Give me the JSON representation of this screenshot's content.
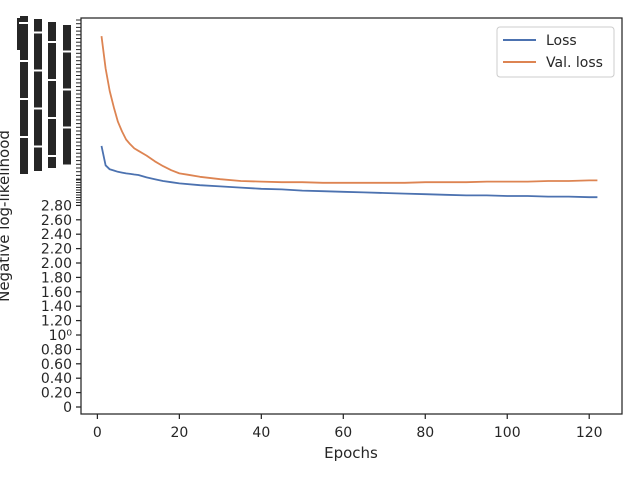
{
  "chart_data": {
    "type": "line",
    "title": "",
    "xlabel": "Epochs",
    "ylabel": "Negative log-likelihood",
    "xlim": [
      -4,
      128
    ],
    "xticks": [
      0,
      20,
      40,
      60,
      80,
      100,
      120
    ],
    "yticks_lower": [
      "0",
      "0.20",
      "0.40",
      "0.60",
      "0.80",
      "10⁰",
      "1.20",
      "1.40",
      "1.60",
      "1.80",
      "2.00",
      "2.20",
      "2.40",
      "2.60",
      "2.80"
    ],
    "grid": false,
    "legend_position": "top-right",
    "series": [
      {
        "name": "Loss",
        "color": "#4c72b0",
        "x": [
          1,
          2,
          3,
          4,
          5,
          6,
          7,
          8,
          9,
          10,
          12,
          14,
          16,
          18,
          20,
          25,
          30,
          35,
          40,
          45,
          50,
          55,
          60,
          65,
          70,
          75,
          80,
          85,
          90,
          95,
          100,
          105,
          110,
          115,
          120,
          122
        ],
        "y": [
          8.2,
          7.0,
          6.75,
          6.68,
          6.6,
          6.55,
          6.5,
          6.47,
          6.43,
          6.4,
          6.36,
          6.33,
          6.3,
          6.28,
          6.26,
          6.23,
          6.21,
          6.19,
          6.17,
          6.16,
          6.14,
          6.13,
          6.12,
          6.11,
          6.1,
          6.09,
          6.08,
          6.07,
          6.06,
          6.06,
          6.05,
          6.05,
          6.04,
          6.04,
          6.03,
          6.03
        ]
      },
      {
        "name": "Val. loss",
        "color": "#dd8452",
        "x": [
          1,
          2,
          3,
          4,
          5,
          6,
          7,
          8,
          9,
          10,
          12,
          14,
          16,
          18,
          20,
          22,
          25,
          30,
          35,
          40,
          45,
          50,
          55,
          60,
          65,
          70,
          75,
          80,
          85,
          90,
          95,
          100,
          105,
          110,
          115,
          120,
          122
        ],
        "y": [
          15.0,
          13.0,
          11.6,
          10.6,
          9.7,
          9.1,
          8.6,
          8.3,
          8.05,
          7.9,
          7.6,
          7.25,
          6.95,
          6.7,
          6.5,
          6.42,
          6.37,
          6.33,
          6.3,
          6.29,
          6.28,
          6.28,
          6.27,
          6.27,
          6.27,
          6.27,
          6.27,
          6.28,
          6.28,
          6.28,
          6.29,
          6.29,
          6.29,
          6.3,
          6.3,
          6.31,
          6.31
        ]
      }
    ]
  }
}
